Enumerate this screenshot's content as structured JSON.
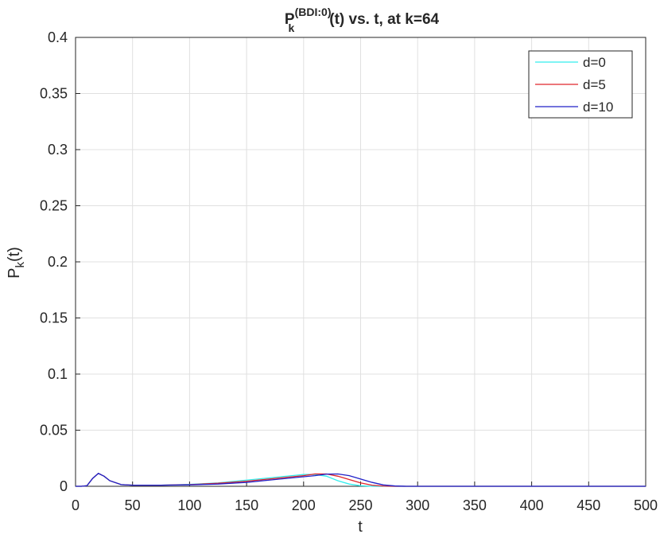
{
  "chart_data": {
    "type": "line",
    "title": {
      "base": "P",
      "sub": "k",
      "sup": "(BDI:0)",
      "rest": "(t) vs. t, at k=64"
    },
    "xlabel": "t",
    "ylabel": {
      "base": "P",
      "sub": "k",
      "rest": "(t)"
    },
    "x": [
      0,
      5,
      10,
      15,
      20,
      25,
      30,
      40,
      50,
      75,
      100,
      125,
      150,
      175,
      200,
      210,
      220,
      230,
      240,
      250,
      260,
      270,
      280,
      290,
      300,
      500
    ],
    "series": [
      {
        "name": "d=0",
        "color": "#33eeee",
        "values": [
          0,
          0,
          0.0005,
          0.007,
          0.0115,
          0.009,
          0.005,
          0.0015,
          0.001,
          0.001,
          0.0017,
          0.003,
          0.0055,
          0.008,
          0.0105,
          0.0105,
          0.009,
          0.005,
          0.002,
          0.0005,
          0,
          0,
          0,
          0,
          0,
          0
        ]
      },
      {
        "name": "d=5",
        "color": "#e0262b",
        "values": [
          0,
          0,
          0.0005,
          0.007,
          0.0115,
          0.009,
          0.005,
          0.0015,
          0.001,
          0.001,
          0.0015,
          0.0027,
          0.0045,
          0.007,
          0.0095,
          0.011,
          0.011,
          0.009,
          0.006,
          0.003,
          0.001,
          0.0002,
          0,
          0,
          0,
          0
        ]
      },
      {
        "name": "d=10",
        "color": "#2020c8",
        "values": [
          0,
          0,
          0.0005,
          0.007,
          0.0115,
          0.009,
          0.005,
          0.0015,
          0.001,
          0.001,
          0.0013,
          0.002,
          0.0035,
          0.006,
          0.0085,
          0.0095,
          0.0108,
          0.011,
          0.0095,
          0.0065,
          0.0035,
          0.0012,
          0.0003,
          0,
          0,
          0
        ]
      }
    ],
    "xlim": [
      0,
      500
    ],
    "xticks": [
      0,
      50,
      100,
      150,
      200,
      250,
      300,
      350,
      400,
      450,
      500
    ],
    "ylim": [
      0,
      0.4
    ],
    "yticks": [
      0,
      0.05,
      0.1,
      0.15,
      0.2,
      0.25,
      0.3,
      0.35,
      0.4
    ],
    "grid": true,
    "legend": "top-right"
  }
}
